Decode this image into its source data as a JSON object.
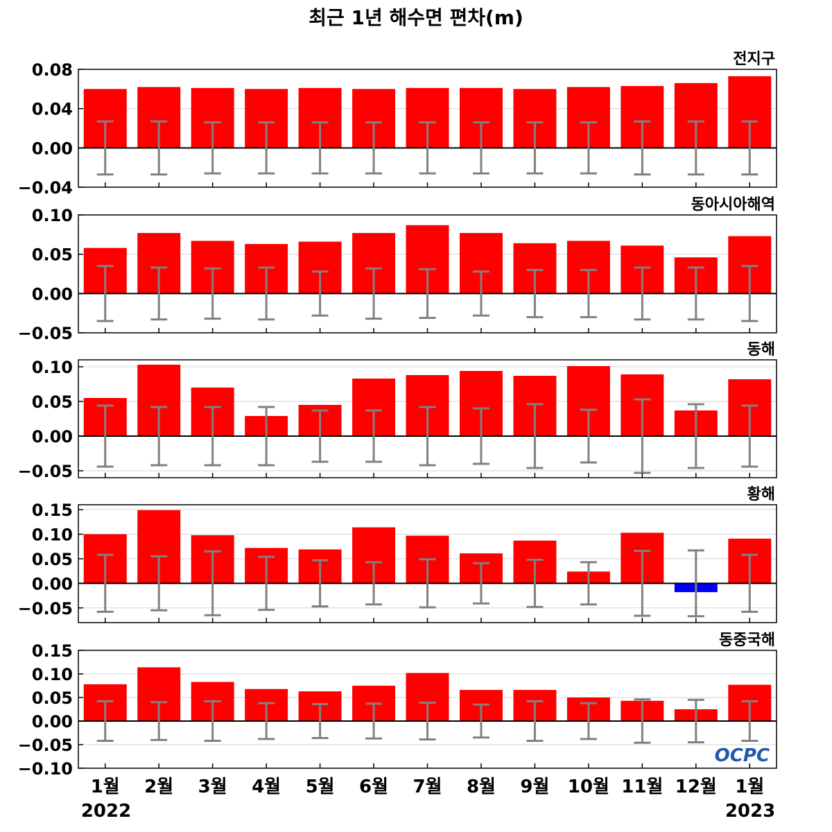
{
  "title": "최근 1년 해수면 편차(m)",
  "logo": "OCPC",
  "colors": {
    "positive": "#ff0000",
    "negative": "#0000ff",
    "error_bar": "#808080",
    "zero_line": "#000000",
    "grid": "#d3d3d3"
  },
  "chart_data": [
    {
      "type": "bar",
      "region": "전지구",
      "categories": [
        "1월",
        "2월",
        "3월",
        "4월",
        "5월",
        "6월",
        "7월",
        "8월",
        "9월",
        "10월",
        "11월",
        "12월",
        "1월"
      ],
      "values": [
        0.06,
        0.062,
        0.061,
        0.06,
        0.061,
        0.06,
        0.061,
        0.061,
        0.06,
        0.062,
        0.063,
        0.066,
        0.073
      ],
      "error_range": [
        0.027,
        0.027,
        0.026,
        0.026,
        0.026,
        0.026,
        0.026,
        0.026,
        0.026,
        0.026,
        0.027,
        0.027,
        0.027
      ],
      "ylim": [
        -0.04,
        0.08
      ],
      "yticks": [
        -0.04,
        0.0,
        0.04,
        0.08
      ],
      "ytick_labels": [
        "−0.04",
        "0.00",
        "0.04",
        "0.08"
      ]
    },
    {
      "type": "bar",
      "region": "동아시아해역",
      "categories": [
        "1월",
        "2월",
        "3월",
        "4월",
        "5월",
        "6월",
        "7월",
        "8월",
        "9월",
        "10월",
        "11월",
        "12월",
        "1월"
      ],
      "values": [
        0.058,
        0.077,
        0.067,
        0.063,
        0.066,
        0.077,
        0.087,
        0.077,
        0.064,
        0.067,
        0.061,
        0.046,
        0.073
      ],
      "error_range": [
        0.035,
        0.033,
        0.032,
        0.033,
        0.028,
        0.032,
        0.031,
        0.028,
        0.03,
        0.03,
        0.033,
        0.033,
        0.035
      ],
      "ylim": [
        -0.05,
        0.1
      ],
      "yticks": [
        -0.05,
        0.0,
        0.05,
        0.1
      ],
      "ytick_labels": [
        "−0.05",
        "0.00",
        "0.05",
        "0.10"
      ]
    },
    {
      "type": "bar",
      "region": "동해",
      "categories": [
        "1월",
        "2월",
        "3월",
        "4월",
        "5월",
        "6월",
        "7월",
        "8월",
        "9월",
        "10월",
        "11월",
        "12월",
        "1월"
      ],
      "values": [
        0.055,
        0.103,
        0.07,
        0.029,
        0.045,
        0.083,
        0.088,
        0.094,
        0.087,
        0.101,
        0.089,
        0.037,
        0.082
      ],
      "error_range": [
        0.044,
        0.042,
        0.042,
        0.042,
        0.037,
        0.037,
        0.042,
        0.04,
        0.046,
        0.038,
        0.053,
        0.046,
        0.044
      ],
      "ylim": [
        -0.06,
        0.11
      ],
      "yticks": [
        -0.05,
        0.0,
        0.05,
        0.1
      ],
      "ytick_labels": [
        "−0.05",
        "0.00",
        "0.05",
        "0.10"
      ]
    },
    {
      "type": "bar",
      "region": "황해",
      "categories": [
        "1월",
        "2월",
        "3월",
        "4월",
        "5월",
        "6월",
        "7월",
        "8월",
        "9월",
        "10월",
        "11월",
        "12월",
        "1월"
      ],
      "values": [
        0.1,
        0.149,
        0.098,
        0.072,
        0.069,
        0.114,
        0.097,
        0.061,
        0.087,
        0.024,
        0.103,
        -0.018,
        0.091
      ],
      "error_range": [
        0.058,
        0.055,
        0.065,
        0.054,
        0.047,
        0.043,
        0.049,
        0.041,
        0.048,
        0.043,
        0.066,
        0.067,
        0.058
      ],
      "ylim": [
        -0.08,
        0.16
      ],
      "yticks": [
        -0.05,
        0.0,
        0.05,
        0.1,
        0.15
      ],
      "ytick_labels": [
        "−0.05",
        "0.00",
        "0.05",
        "0.10",
        "0.15"
      ]
    },
    {
      "type": "bar",
      "region": "동중국해",
      "categories": [
        "1월",
        "2월",
        "3월",
        "4월",
        "5월",
        "6월",
        "7월",
        "8월",
        "9월",
        "10월",
        "11월",
        "12월",
        "1월"
      ],
      "values": [
        0.078,
        0.114,
        0.083,
        0.068,
        0.063,
        0.075,
        0.102,
        0.066,
        0.066,
        0.05,
        0.043,
        0.025,
        0.077
      ],
      "error_range": [
        0.042,
        0.04,
        0.042,
        0.038,
        0.036,
        0.037,
        0.039,
        0.035,
        0.042,
        0.038,
        0.046,
        0.045,
        0.042
      ],
      "ylim": [
        -0.1,
        0.15
      ],
      "yticks": [
        -0.1,
        -0.05,
        0.0,
        0.05,
        0.1,
        0.15
      ],
      "ytick_labels": [
        "−0.10",
        "−0.05",
        "0.00",
        "0.05",
        "0.10",
        "0.15"
      ]
    }
  ],
  "x_axis": {
    "month_labels": [
      "1월",
      "2월",
      "3월",
      "4월",
      "5월",
      "6월",
      "7월",
      "8월",
      "9월",
      "10월",
      "11월",
      "12월",
      "1월"
    ],
    "start_year": "2022",
    "end_year": "2023"
  }
}
